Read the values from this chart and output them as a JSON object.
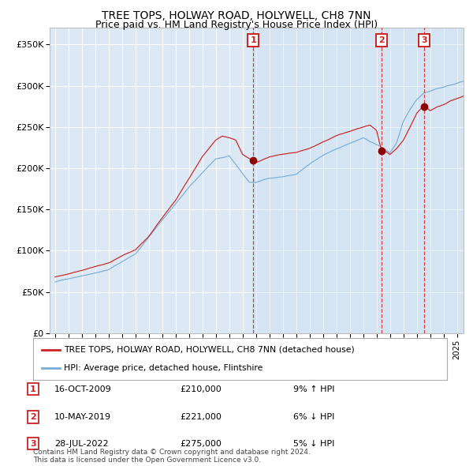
{
  "title": "TREE TOPS, HOLWAY ROAD, HOLYWELL, CH8 7NN",
  "subtitle": "Price paid vs. HM Land Registry's House Price Index (HPI)",
  "title_fontsize": 10,
  "subtitle_fontsize": 9,
  "red_line_label": "TREE TOPS, HOLWAY ROAD, HOLYWELL, CH8 7NN (detached house)",
  "blue_line_label": "HPI: Average price, detached house, Flintshire",
  "sale_points": [
    {
      "num": 1,
      "date": "16-OCT-2009",
      "price": 210000,
      "pct": "9%",
      "dir": "↑",
      "x_year": 2009.79
    },
    {
      "num": 2,
      "date": "10-MAY-2019",
      "price": 221000,
      "pct": "6%",
      "dir": "↓",
      "x_year": 2019.36
    },
    {
      "num": 3,
      "date": "28-JUL-2022",
      "price": 275000,
      "pct": "5%",
      "dir": "↓",
      "x_year": 2022.57
    }
  ],
  "ylim": [
    0,
    370000
  ],
  "xlim_start": 1994.6,
  "xlim_end": 2025.5,
  "background_color": "#ffffff",
  "plot_bg_color": "#dce9f5",
  "grid_color": "#ffffff",
  "footer": "Contains HM Land Registry data © Crown copyright and database right 2024.\nThis data is licensed under the Open Government Licence v3.0."
}
